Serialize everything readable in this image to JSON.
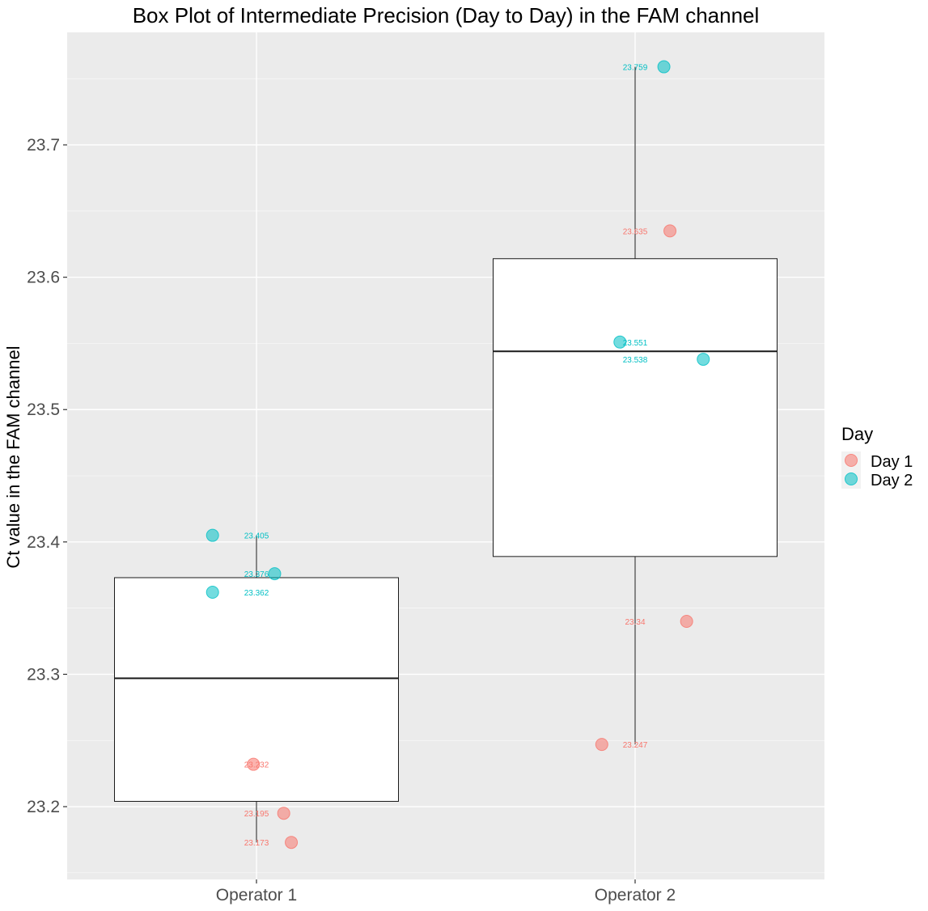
{
  "colors": {
    "panel_bg": "#EBEBEB",
    "grid_major": "#FFFFFF",
    "text": "#1A1A1A",
    "tick_text": "#4D4D4D",
    "day1": "#F8766D",
    "day2": "#00BFC4",
    "box_fill": "#FFFFFF",
    "box_stroke": "#1A1A1A"
  },
  "chart_data": {
    "type": "box",
    "title": "Box Plot of Intermediate Precision (Day to Day) in the FAM channel",
    "xlabel": "",
    "ylabel": "Ct value in the FAM channel",
    "categories": [
      "Operator 1",
      "Operator 2"
    ],
    "ylim": [
      23.145,
      23.785
    ],
    "y_ticks": [
      23.2,
      23.3,
      23.4,
      23.5,
      23.6,
      23.7
    ],
    "y_tick_labels": [
      "23.2",
      "23.3",
      "23.4",
      "23.5",
      "23.6",
      "23.7"
    ],
    "boxes": [
      {
        "category": "Operator 1",
        "lower_whisker": 23.173,
        "q1": 23.204,
        "median": 23.297,
        "q3": 23.373,
        "upper_whisker": 23.405
      },
      {
        "category": "Operator 2",
        "lower_whisker": 23.247,
        "q1": 23.389,
        "median": 23.544,
        "q3": 23.614,
        "upper_whisker": 23.759
      }
    ],
    "points": [
      {
        "category": "Operator 1",
        "day": "Day 1",
        "y": 23.232,
        "label": "23.232",
        "jitter": -0.02
      },
      {
        "category": "Operator 1",
        "day": "Day 1",
        "y": 23.195,
        "label": "23.195",
        "jitter": 0.18
      },
      {
        "category": "Operator 1",
        "day": "Day 1",
        "y": 23.173,
        "label": "23.173",
        "jitter": 0.23
      },
      {
        "category": "Operator 1",
        "day": "Day 2",
        "y": 23.405,
        "label": "23.405",
        "jitter": -0.29
      },
      {
        "category": "Operator 1",
        "day": "Day 2",
        "y": 23.376,
        "label": "23.376",
        "jitter": 0.12
      },
      {
        "category": "Operator 1",
        "day": "Day 2",
        "y": 23.362,
        "label": "23.362",
        "jitter": -0.29
      },
      {
        "category": "Operator 2",
        "day": "Day 1",
        "y": 23.635,
        "label": "23.635",
        "jitter": 0.23
      },
      {
        "category": "Operator 2",
        "day": "Day 1",
        "y": 23.34,
        "label": "23.34",
        "jitter": 0.34
      },
      {
        "category": "Operator 2",
        "day": "Day 1",
        "y": 23.247,
        "label": "23.247",
        "jitter": -0.22
      },
      {
        "category": "Operator 2",
        "day": "Day 2",
        "y": 23.759,
        "label": "23.759",
        "jitter": 0.19
      },
      {
        "category": "Operator 2",
        "day": "Day 2",
        "y": 23.551,
        "label": "23.551",
        "jitter": -0.1
      },
      {
        "category": "Operator 2",
        "day": "Day 2",
        "y": 23.538,
        "label": "23.538",
        "jitter": 0.45
      }
    ],
    "legend": {
      "title": "Day",
      "placement": "right",
      "entries": [
        {
          "name": "Day 1",
          "color": "#F8766D"
        },
        {
          "name": "Day 2",
          "color": "#00BFC4"
        }
      ]
    },
    "grid": true
  }
}
